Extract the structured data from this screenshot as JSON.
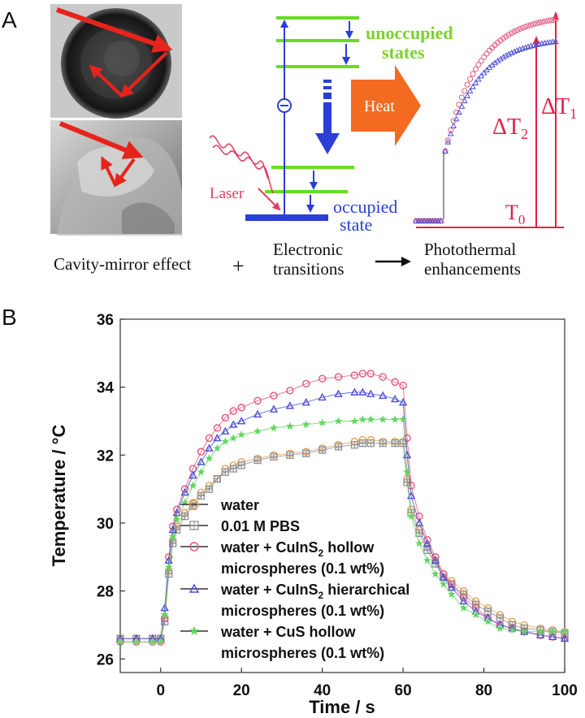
{
  "panel_a": {
    "label": "A",
    "unoccupied_label": [
      "unoccupied",
      "states"
    ],
    "occupied_label": [
      "occupied",
      "state"
    ],
    "heat_label": "Heat",
    "laser_label": "Laser",
    "caption_cavity": "Cavity-mirror effect",
    "plus": "+",
    "caption_electronic": [
      "Electronic",
      "transitions"
    ],
    "caption_photothermal": [
      "Photothermal",
      "enhancements"
    ],
    "delta_t1_label": "ΔT",
    "delta_t1_sub": "1",
    "delta_t2_label": "ΔT",
    "delta_t2_sub": "2",
    "t0_label": "T",
    "t0_sub": "0",
    "colors": {
      "arrow_red": "#e8231c",
      "level_green": "#66dd22",
      "level_blue": "#2b3fd6",
      "heat_orange": "#f46a21",
      "laser_pink": "#e23a5c",
      "label_green": "#7ad22b",
      "label_red": "#e3204a"
    }
  },
  "chart_data": {
    "panel_label": "B",
    "type": "scatter",
    "xlabel": "Time / s",
    "ylabel": "Temperature / °C",
    "xlim": [
      -10,
      100
    ],
    "ylim": [
      25.6,
      36
    ],
    "xticks": [
      0,
      20,
      40,
      60,
      80,
      100
    ],
    "yticks": [
      26,
      28,
      30,
      32,
      34,
      36
    ],
    "legend_position": "center-left",
    "series": [
      {
        "name": "water",
        "legend_lines": [
          "water"
        ],
        "marker": "circle",
        "color": "#e8a055",
        "points": [
          [
            -10,
            26.6
          ],
          [
            -6,
            26.6
          ],
          [
            -2,
            26.6
          ],
          [
            0,
            26.6
          ],
          [
            1,
            27.2
          ],
          [
            2,
            28.6
          ],
          [
            3,
            29.5
          ],
          [
            4,
            29.9
          ],
          [
            6,
            30.3
          ],
          [
            8,
            30.6
          ],
          [
            10,
            30.9
          ],
          [
            12,
            31.1
          ],
          [
            14,
            31.3
          ],
          [
            16,
            31.6
          ],
          [
            18,
            31.7
          ],
          [
            20,
            31.8
          ],
          [
            24,
            31.9
          ],
          [
            28,
            32.0
          ],
          [
            32,
            32.05
          ],
          [
            36,
            32.1
          ],
          [
            40,
            32.2
          ],
          [
            44,
            32.3
          ],
          [
            48,
            32.4
          ],
          [
            50,
            32.45
          ],
          [
            52,
            32.45
          ],
          [
            55,
            32.4
          ],
          [
            58,
            32.4
          ],
          [
            60,
            32.4
          ],
          [
            61,
            31.3
          ],
          [
            62,
            30.4
          ],
          [
            64,
            29.8
          ],
          [
            66,
            29.3
          ],
          [
            68,
            28.9
          ],
          [
            70,
            28.5
          ],
          [
            72,
            28.3
          ],
          [
            75,
            28.0
          ],
          [
            78,
            27.7
          ],
          [
            81,
            27.5
          ],
          [
            84,
            27.3
          ],
          [
            87,
            27.1
          ],
          [
            90,
            27.0
          ],
          [
            94,
            26.9
          ],
          [
            97,
            26.85
          ],
          [
            100,
            26.8
          ]
        ]
      },
      {
        "name": "0.01 M PBS",
        "legend_lines": [
          "0.01 M PBS"
        ],
        "marker": "square",
        "color": "#8c9199",
        "points": [
          [
            -10,
            26.6
          ],
          [
            -6,
            26.6
          ],
          [
            -2,
            26.6
          ],
          [
            0,
            26.6
          ],
          [
            1,
            27.1
          ],
          [
            2,
            28.5
          ],
          [
            3,
            29.4
          ],
          [
            4,
            29.8
          ],
          [
            6,
            30.2
          ],
          [
            8,
            30.5
          ],
          [
            10,
            30.8
          ],
          [
            12,
            31.0
          ],
          [
            14,
            31.3
          ],
          [
            16,
            31.5
          ],
          [
            18,
            31.6
          ],
          [
            20,
            31.7
          ],
          [
            24,
            31.85
          ],
          [
            28,
            31.95
          ],
          [
            32,
            32.0
          ],
          [
            36,
            32.05
          ],
          [
            40,
            32.15
          ],
          [
            44,
            32.25
          ],
          [
            48,
            32.3
          ],
          [
            50,
            32.35
          ],
          [
            52,
            32.35
          ],
          [
            55,
            32.35
          ],
          [
            58,
            32.35
          ],
          [
            60,
            32.35
          ],
          [
            61,
            31.2
          ],
          [
            62,
            30.3
          ],
          [
            64,
            29.7
          ],
          [
            66,
            29.2
          ],
          [
            68,
            28.8
          ],
          [
            70,
            28.4
          ],
          [
            72,
            28.2
          ],
          [
            75,
            27.9
          ],
          [
            78,
            27.6
          ],
          [
            81,
            27.4
          ],
          [
            84,
            27.2
          ],
          [
            87,
            27.0
          ],
          [
            90,
            26.9
          ],
          [
            94,
            26.85
          ],
          [
            97,
            26.8
          ],
          [
            100,
            26.75
          ]
        ]
      },
      {
        "name": "water + CuInS2 hollow microspheres (0.1 wt%)",
        "legend_lines": [
          "water + CuInS",
          "2",
          " hollow",
          "microspheres (0.1 wt%)"
        ],
        "marker": "circle",
        "color": "#e8567a",
        "points": [
          [
            -10,
            26.5
          ],
          [
            -6,
            26.5
          ],
          [
            -2,
            26.5
          ],
          [
            0,
            26.5
          ],
          [
            1,
            27.2
          ],
          [
            2,
            29.0
          ],
          [
            3,
            29.9
          ],
          [
            4,
            30.4
          ],
          [
            6,
            31.0
          ],
          [
            8,
            31.6
          ],
          [
            10,
            32.1
          ],
          [
            12,
            32.5
          ],
          [
            14,
            32.8
          ],
          [
            16,
            33.1
          ],
          [
            18,
            33.3
          ],
          [
            20,
            33.4
          ],
          [
            24,
            33.6
          ],
          [
            28,
            33.75
          ],
          [
            32,
            33.9
          ],
          [
            36,
            34.1
          ],
          [
            40,
            34.25
          ],
          [
            44,
            34.3
          ],
          [
            48,
            34.35
          ],
          [
            50,
            34.4
          ],
          [
            52,
            34.4
          ],
          [
            55,
            34.3
          ],
          [
            58,
            34.15
          ],
          [
            60,
            34.05
          ],
          [
            61,
            32.5
          ],
          [
            62,
            31.1
          ],
          [
            64,
            30.2
          ],
          [
            66,
            29.5
          ],
          [
            68,
            29.0
          ],
          [
            70,
            28.5
          ],
          [
            72,
            28.2
          ],
          [
            75,
            27.8
          ],
          [
            78,
            27.5
          ],
          [
            81,
            27.2
          ],
          [
            84,
            27.0
          ],
          [
            87,
            26.9
          ],
          [
            90,
            26.8
          ],
          [
            94,
            26.7
          ],
          [
            97,
            26.65
          ],
          [
            100,
            26.6
          ]
        ]
      },
      {
        "name": "water + CuInS2 hierarchical microspheres (0.1 wt%)",
        "legend_lines": [
          "water + CuInS",
          "2",
          " hierarchical",
          "microspheres (0.1 wt%)"
        ],
        "marker": "triangle",
        "color": "#4d4fd6",
        "points": [
          [
            -10,
            26.6
          ],
          [
            -6,
            26.6
          ],
          [
            -2,
            26.6
          ],
          [
            0,
            26.6
          ],
          [
            1,
            27.5
          ],
          [
            2,
            28.9
          ],
          [
            3,
            29.8
          ],
          [
            4,
            30.3
          ],
          [
            6,
            30.9
          ],
          [
            8,
            31.4
          ],
          [
            10,
            31.8
          ],
          [
            12,
            32.2
          ],
          [
            14,
            32.5
          ],
          [
            16,
            32.7
          ],
          [
            18,
            32.9
          ],
          [
            20,
            33.0
          ],
          [
            24,
            33.2
          ],
          [
            28,
            33.35
          ],
          [
            32,
            33.45
          ],
          [
            36,
            33.55
          ],
          [
            40,
            33.7
          ],
          [
            44,
            33.8
          ],
          [
            48,
            33.85
          ],
          [
            50,
            33.85
          ],
          [
            52,
            33.8
          ],
          [
            55,
            33.75
          ],
          [
            58,
            33.65
          ],
          [
            60,
            33.55
          ],
          [
            61,
            32.0
          ],
          [
            62,
            30.8
          ],
          [
            64,
            30.0
          ],
          [
            66,
            29.4
          ],
          [
            68,
            28.9
          ],
          [
            70,
            28.4
          ],
          [
            72,
            28.1
          ],
          [
            75,
            27.7
          ],
          [
            78,
            27.4
          ],
          [
            81,
            27.2
          ],
          [
            84,
            27.0
          ],
          [
            87,
            26.9
          ],
          [
            90,
            26.8
          ],
          [
            94,
            26.7
          ],
          [
            97,
            26.65
          ],
          [
            100,
            26.6
          ]
        ]
      },
      {
        "name": "water + CuS hollow microspheres (0.1 wt%)",
        "legend_lines": [
          "water + CuS hollow",
          "microspheres (0.1 wt%)"
        ],
        "marker": "star",
        "color": "#5fd65f",
        "points": [
          [
            -10,
            26.5
          ],
          [
            -6,
            26.5
          ],
          [
            -2,
            26.5
          ],
          [
            0,
            26.5
          ],
          [
            1,
            27.3
          ],
          [
            2,
            28.7
          ],
          [
            3,
            29.6
          ],
          [
            4,
            30.1
          ],
          [
            6,
            30.6
          ],
          [
            8,
            31.1
          ],
          [
            10,
            31.5
          ],
          [
            12,
            31.9
          ],
          [
            14,
            32.2
          ],
          [
            16,
            32.4
          ],
          [
            18,
            32.5
          ],
          [
            20,
            32.6
          ],
          [
            24,
            32.7
          ],
          [
            28,
            32.8
          ],
          [
            32,
            32.85
          ],
          [
            36,
            32.9
          ],
          [
            40,
            32.95
          ],
          [
            44,
            33.0
          ],
          [
            48,
            33.0
          ],
          [
            50,
            33.05
          ],
          [
            52,
            33.05
          ],
          [
            55,
            33.05
          ],
          [
            58,
            33.05
          ],
          [
            60,
            33.05
          ],
          [
            61,
            31.5
          ],
          [
            62,
            30.2
          ],
          [
            64,
            29.4
          ],
          [
            66,
            28.9
          ],
          [
            68,
            28.5
          ],
          [
            70,
            28.2
          ],
          [
            72,
            27.9
          ],
          [
            75,
            27.5
          ],
          [
            78,
            27.3
          ],
          [
            81,
            27.1
          ],
          [
            84,
            26.9
          ],
          [
            87,
            26.85
          ],
          [
            90,
            26.8
          ],
          [
            94,
            26.8
          ],
          [
            97,
            26.8
          ],
          [
            100,
            26.8
          ]
        ]
      }
    ]
  }
}
